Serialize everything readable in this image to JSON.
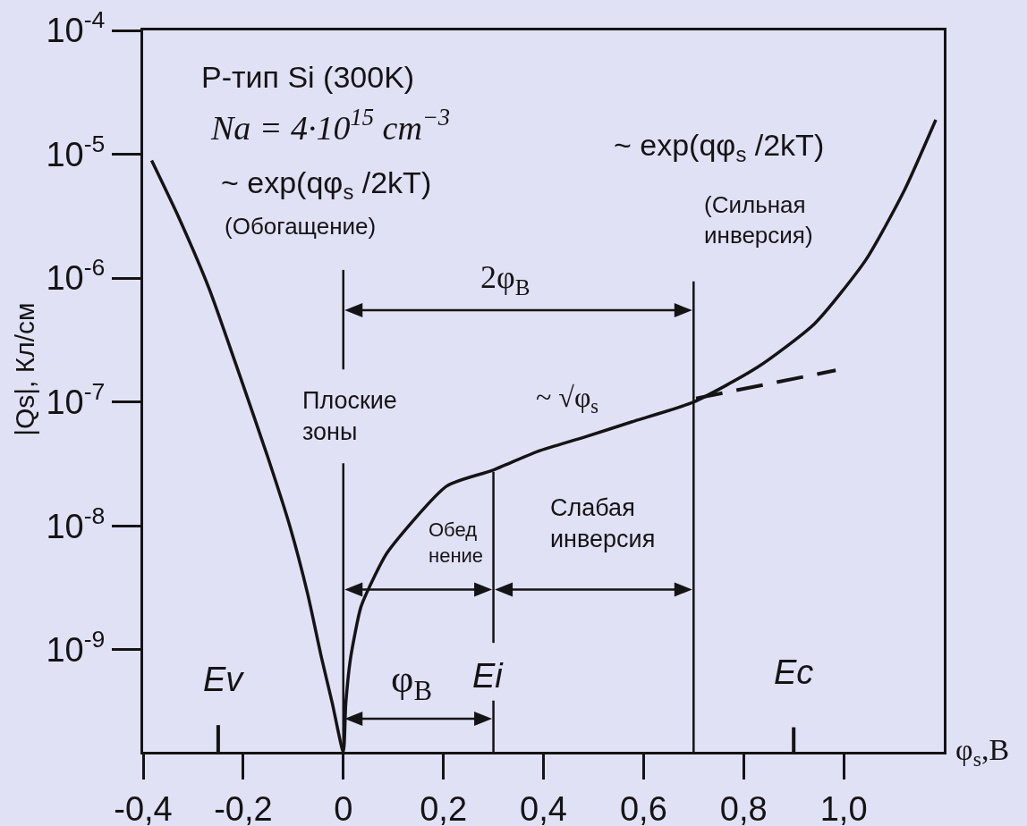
{
  "chart_data": {
    "type": "line",
    "xlabel": "φ$_{s}$,В",
    "ylabel": "|Qs|, Кл/см",
    "log": "y",
    "line_style": "solid",
    "xlim": [
      -0.4,
      1.2
    ],
    "xticks": [
      {
        "value": -0.4,
        "label": "-0,4"
      },
      {
        "value": -0.2,
        "label": "-0,2"
      },
      0,
      {
        "value": 0.2,
        "label": "0,2"
      },
      {
        "value": 0.4,
        "label": "0,4"
      },
      {
        "value": 0.6,
        "label": "0,6"
      },
      {
        "value": 0.8,
        "label": "0,8"
      },
      {
        "value": 1.0,
        "label": "1,0"
      }
    ],
    "ylim": [
      1.5e-10,
      0.0001
    ],
    "yticks": [
      {
        "value": 0.0001,
        "label": "10$^{-4}$"
      },
      {
        "value": 1e-05,
        "label": "10$^{-5}$"
      },
      {
        "value": 1e-06,
        "label": "10$^{-6}$"
      },
      {
        "value": 1e-07,
        "label": "10$^{-7}$"
      },
      {
        "value": 1e-08,
        "label": "10$^{-8}$"
      },
      {
        "value": 1e-09,
        "label": "10$^{-9}$"
      }
    ],
    "series": [
      {
        "color": "#141414",
        "x": [
          -0.383,
          -0.329,
          -0.268,
          -0.206,
          -0.152,
          -0.107,
          -0.071,
          -0.044,
          -0.022,
          0,
          0.005,
          0.015,
          0.035,
          0.058,
          0.088,
          0.207,
          0.297,
          0.389,
          0.481,
          0.576,
          0.7,
          0.827,
          0.942,
          1.044,
          1.12,
          1.184
        ],
        "values": [
          8.9e-06,
          3.1e-06,
          8.2e-07,
          1.6e-07,
          3.7e-08,
          1e-08,
          2.8e-09,
          8.8e-10,
          3.7e-10,
          1.5e-10,
          3.7e-10,
          8.8e-10,
          2.2e-09,
          3.6e-09,
          6.1e-09,
          2.1e-08,
          2.8e-08,
          4e-08,
          5.2e-08,
          6.9e-08,
          1e-07,
          1.9e-07,
          4.3e-07,
          1.4e-06,
          5e-06,
          1.9e-05
        ]
      },
      {
        "color": "#141414",
        "line_style": "dashed",
        "x": [
          0.705,
          0.984
        ],
        "values": [
          1.07e-07,
          1.8e-07
        ]
      }
    ],
    "ref_lines": [
      {
        "axis": "x",
        "value": 0,
        "label": "Плоские\nзоны",
        "color": "#141414"
      },
      {
        "axis": "x",
        "value": 0.3,
        "label": "Ei",
        "color": "#141414"
      },
      {
        "axis": "x",
        "value": 0.7,
        "color": "#141414"
      },
      {
        "axis": "x",
        "value": -0.25,
        "label": "Ev",
        "color": "#141414"
      },
      {
        "axis": "x",
        "value": 0.9,
        "label": "Ec",
        "color": "#141414"
      }
    ],
    "annotations": [
      "P-тип Si (300K)",
      "Na = 4·10$^{15}$ cm$^{−3}$",
      "~ exp(qφ$_{s}$ /2kT)",
      "(Обогащение)",
      "~ √φ$_{s}$",
      "~ exp(qφ$_{s}$ /2kT)",
      "(Сильная\nинверсия)",
      "2φ$_{B}$",
      "Обед\nнение",
      "Слабая\nинверсия",
      "φ$_{B}$"
    ]
  }
}
